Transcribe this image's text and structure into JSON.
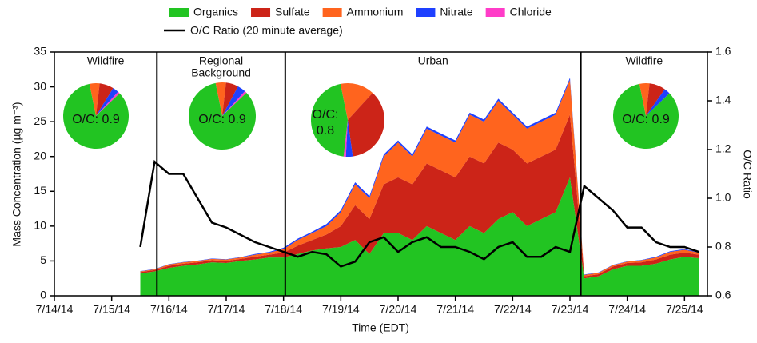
{
  "chart_data": {
    "type": "area",
    "xlabel": "Time (EDT)",
    "ylabel": "Mass Concentration (µg m⁻³)",
    "y2label": "O/C Ratio",
    "xlim": [
      14,
      25.4
    ],
    "ylim": [
      0,
      35
    ],
    "y2lim": [
      0.6,
      1.6
    ],
    "xticks": [
      {
        "value": 14,
        "label": "7/14/14"
      },
      {
        "value": 15,
        "label": "7/15/14"
      },
      {
        "value": 16,
        "label": "7/16/14"
      },
      {
        "value": 17,
        "label": "7/17/14"
      },
      {
        "value": 18,
        "label": "7/18/14"
      },
      {
        "value": 19,
        "label": "7/19/14"
      },
      {
        "value": 20,
        "label": "7/20/14"
      },
      {
        "value": 21,
        "label": "7/21/14"
      },
      {
        "value": 22,
        "label": "7/22/14"
      },
      {
        "value": 23,
        "label": "7/23/14"
      },
      {
        "value": 24,
        "label": "7/24/14"
      },
      {
        "value": 25,
        "label": "7/25/14"
      }
    ],
    "yticks": [
      0,
      5,
      10,
      15,
      20,
      25,
      30,
      35
    ],
    "y2ticks": [
      0.6,
      0.8,
      {
        "value": 1,
        "label": "1.0"
      },
      1.2,
      1.4,
      1.6
    ],
    "x": [
      15.5,
      15.75,
      16,
      16.25,
      16.5,
      16.75,
      17,
      17.25,
      17.5,
      17.75,
      18,
      18.25,
      18.5,
      18.75,
      19,
      19.25,
      19.5,
      19.75,
      20,
      20.25,
      20.5,
      20.75,
      21,
      21.25,
      21.5,
      21.75,
      22,
      22.25,
      22.5,
      22.75,
      23,
      23.25,
      23.5,
      23.75,
      24,
      24.25,
      24.5,
      24.75,
      25,
      25.25
    ],
    "series": [
      {
        "name": "Organics",
        "color": "#22c422",
        "values": [
          3.2,
          3.5,
          4,
          4.3,
          4.5,
          4.8,
          4.7,
          5,
          5.2,
          5.5,
          5.5,
          6,
          6.5,
          6.8,
          7,
          8,
          6,
          9,
          9,
          8,
          10,
          9,
          8,
          10,
          9,
          11,
          12,
          10,
          11,
          12,
          17,
          2.5,
          2.8,
          3.8,
          4.3,
          4.3,
          4.6,
          5.2,
          5.6,
          5.4
        ]
      },
      {
        "name": "Sulfate",
        "color": "#cc2418",
        "values": [
          0.2,
          0.2,
          0.3,
          0.3,
          0.3,
          0.3,
          0.3,
          0.3,
          0.4,
          0.4,
          0.7,
          1.2,
          1.5,
          2,
          3,
          5,
          5,
          7,
          8,
          8,
          9,
          9,
          9,
          10,
          10,
          11,
          9,
          9,
          9,
          9,
          9,
          0.3,
          0.3,
          0.4,
          0.4,
          0.5,
          0.6,
          0.7,
          0.6,
          0.5
        ]
      },
      {
        "name": "Ammonium",
        "color": "#ff641e",
        "values": [
          0.1,
          0.1,
          0.2,
          0.2,
          0.2,
          0.2,
          0.2,
          0.2,
          0.3,
          0.3,
          0.5,
          0.8,
          1,
          1.2,
          2,
          3,
          3,
          4,
          5,
          4,
          5,
          5,
          5,
          6,
          6,
          6,
          5,
          5,
          5,
          5,
          5,
          0.2,
          0.2,
          0.2,
          0.2,
          0.3,
          0.3,
          0.4,
          0.4,
          0.3
        ]
      },
      {
        "name": "Nitrate",
        "color": "#1e40ff",
        "values": [
          0.05,
          0.05,
          0.05,
          0.05,
          0.05,
          0.05,
          0.05,
          0.05,
          0.1,
          0.1,
          0.2,
          0.2,
          0.2,
          0.3,
          0.3,
          0.3,
          0.3,
          0.3,
          0.3,
          0.3,
          0.3,
          0.3,
          0.3,
          0.3,
          0.3,
          0.3,
          0.3,
          0.3,
          0.3,
          0.3,
          0.3,
          0.05,
          0.05,
          0.05,
          0.05,
          0.05,
          0.1,
          0.1,
          0.1,
          0.1
        ]
      },
      {
        "name": "Chloride",
        "color": "#ff3cc8",
        "values": [
          0,
          0,
          0,
          0,
          0,
          0,
          0,
          0,
          0,
          0,
          0,
          0,
          0,
          0,
          0,
          0,
          0,
          0,
          0,
          0,
          0,
          0,
          0,
          0,
          0,
          0,
          0,
          0,
          0,
          0,
          0,
          0,
          0,
          0,
          0,
          0,
          0,
          0,
          0,
          0
        ]
      },
      {
        "name": "O/C Ratio (20 minute average)",
        "color": "#000000",
        "kind": "line",
        "axis": "y2",
        "values": [
          0.8,
          1.15,
          1.1,
          1.1,
          1.0,
          0.9,
          0.88,
          0.85,
          0.82,
          0.8,
          0.78,
          0.76,
          0.78,
          0.77,
          0.72,
          0.74,
          0.82,
          0.84,
          0.78,
          0.82,
          0.84,
          0.8,
          0.8,
          0.78,
          0.75,
          0.8,
          0.82,
          0.76,
          0.76,
          0.8,
          0.78,
          1.05,
          1.0,
          0.95,
          0.88,
          0.88,
          0.82,
          0.8,
          0.8,
          0.78
        ]
      }
    ],
    "dividers": [
      15.79,
      18.03,
      23.19
    ],
    "regions": [
      {
        "label_lines": [
          "Wildfire"
        ]
      },
      {
        "label_lines": [
          "Regional",
          "Background"
        ]
      },
      {
        "label_lines": [
          "Urban"
        ]
      },
      {
        "label_lines": [
          "Wildfire"
        ]
      }
    ],
    "pies": [
      {
        "values": [
          84,
          7,
          5,
          3,
          1
        ],
        "label_lines": [
          "O/C: 0.9"
        ]
      },
      {
        "values": [
          84,
          6,
          5,
          4,
          1
        ],
        "label_lines": [
          "O/C: 0.9"
        ]
      },
      {
        "values": [
          45,
          36,
          15,
          3,
          1
        ],
        "label_lines": [
          "O/C:",
          "0.8"
        ]
      },
      {
        "values": [
          84,
          8,
          5,
          3,
          0
        ],
        "label_lines": [
          "O/C: 0.9"
        ]
      }
    ]
  }
}
